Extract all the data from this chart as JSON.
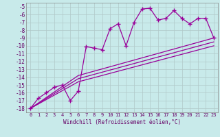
{
  "xlabel": "Windchill (Refroidissement éolien,°C)",
  "background_color": "#c8eaea",
  "grid_color": "#b0c8c8",
  "line_color": "#990099",
  "xlim": [
    -0.5,
    23.5
  ],
  "ylim": [
    -18.5,
    -4.5
  ],
  "xticks": [
    0,
    1,
    2,
    3,
    4,
    5,
    6,
    7,
    8,
    9,
    10,
    11,
    12,
    13,
    14,
    15,
    16,
    17,
    18,
    19,
    20,
    21,
    22,
    23
  ],
  "yticks": [
    -5,
    -6,
    -7,
    -8,
    -9,
    -10,
    -11,
    -12,
    -13,
    -14,
    -15,
    -16,
    -17,
    -18
  ],
  "lines": [
    {
      "x": [
        0,
        1,
        2,
        3,
        4,
        5,
        6,
        7,
        8,
        9,
        10,
        11,
        12,
        13,
        14,
        15,
        16,
        17,
        18,
        19,
        20,
        21,
        22,
        23
      ],
      "y": [
        -18,
        -16.7,
        -16.0,
        -15.3,
        -15.0,
        -17.0,
        -15.8,
        -10.1,
        -10.3,
        -10.5,
        -7.8,
        -7.2,
        -10.0,
        -7.0,
        -5.3,
        -5.2,
        -6.7,
        -6.5,
        -5.5,
        -6.5,
        -7.2,
        -6.5,
        -6.5,
        -9.0
      ],
      "marker": true
    },
    {
      "x": [
        0,
        6,
        23
      ],
      "y": [
        -18,
        -13.8,
        -9.0
      ],
      "marker": false
    },
    {
      "x": [
        0,
        6,
        23
      ],
      "y": [
        -18,
        -14.2,
        -9.5
      ],
      "marker": false
    },
    {
      "x": [
        0,
        6,
        23
      ],
      "y": [
        -18,
        -14.6,
        -10.0
      ],
      "marker": false
    }
  ]
}
